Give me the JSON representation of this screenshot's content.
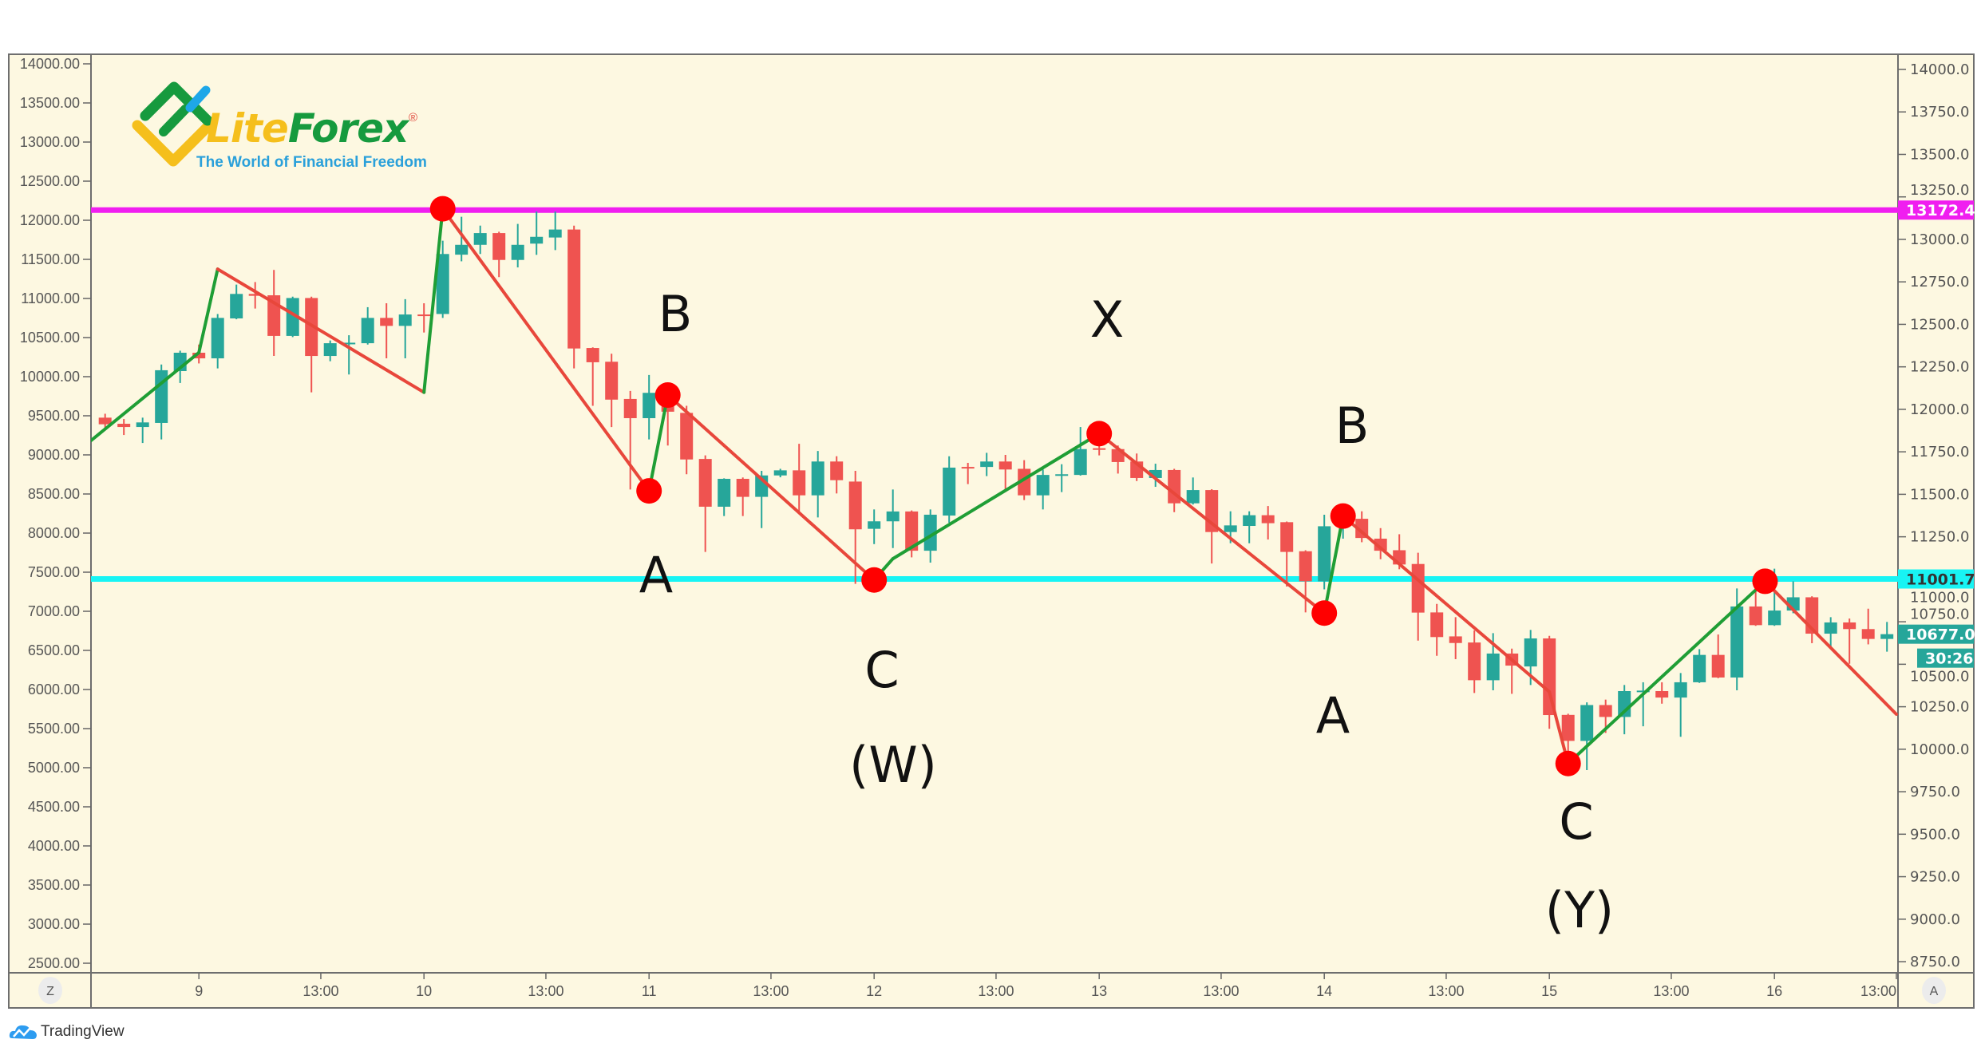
{
  "logo": {
    "brand_part1": "Lite",
    "brand_part2": "Forex",
    "registered": "®",
    "tagline": "The World of Financial Freedom"
  },
  "footer": {
    "brand": "TradingView"
  },
  "axis_buttons": {
    "left": "Z",
    "right": "A"
  },
  "colors": {
    "background": "#fdf8e1",
    "up": "#26a69a",
    "down": "#ef5350",
    "wave_up": "#1f9e35",
    "wave_down": "#e8473b",
    "pivot": "#ff0000",
    "resistance": "#f01ef0",
    "support": "#18f4f4"
  },
  "price_badges": {
    "resistance": "13172.4",
    "support": "11001.7",
    "last": "10677.0",
    "countdown": "30:26"
  },
  "chart_data": {
    "type": "candlestick",
    "left_axis_ticks": [
      "14000.00",
      "13500.00",
      "13000.00",
      "12500.00",
      "12000.00",
      "11500.00",
      "11000.00",
      "10500.00",
      "10000.00",
      "9500.00",
      "9000.00",
      "8500.00",
      "8000.00",
      "7500.00",
      "7000.00",
      "6500.00",
      "6000.00",
      "5500.00",
      "5000.00",
      "4500.00",
      "4000.00",
      "3500.00",
      "3000.00",
      "2500.00"
    ],
    "right_axis_ticks": [
      "14000.0",
      "13750.0",
      "13500.0",
      "13250.0",
      "13000.0",
      "12750.0",
      "12500.0",
      "12250.0",
      "12000.0",
      "11750.0",
      "11500.0",
      "11250.0",
      "11000.0",
      "10750.0",
      "10500.0",
      "10250.0",
      "10000.0",
      "9750.0",
      "9500.0",
      "9250.0",
      "9000.0",
      "8750.0"
    ],
    "ylim": [
      8750,
      14000
    ],
    "x_ticks": [
      {
        "label": "9",
        "t": "9 00:00"
      },
      {
        "label": "13:00",
        "t": "9 13:00"
      },
      {
        "label": "10",
        "t": "10 00:00"
      },
      {
        "label": "13:00",
        "t": "10 13:00"
      },
      {
        "label": "11",
        "t": "11 00:00"
      },
      {
        "label": "13:00",
        "t": "11 13:00"
      },
      {
        "label": "12",
        "t": "12 00:00"
      },
      {
        "label": "13:00",
        "t": "12 13:00"
      },
      {
        "label": "13",
        "t": "13 00:00"
      },
      {
        "label": "13:00",
        "t": "13 13:00"
      },
      {
        "label": "14",
        "t": "14 00:00"
      },
      {
        "label": "13:00",
        "t": "14 13:00"
      },
      {
        "label": "15",
        "t": "15 00:00"
      },
      {
        "label": "13:00",
        "t": "15 13:00"
      },
      {
        "label": "16",
        "t": "16 00:00"
      },
      {
        "label": "13:00",
        "t": "16 13:00"
      }
    ],
    "candle_interval_hours": 2,
    "first_candle": "8 14:00",
    "candles_ohlc": [
      [
        11951,
        11974,
        11888,
        11912
      ],
      [
        11915,
        11943,
        11849,
        11896
      ],
      [
        11896,
        11951,
        11802,
        11923
      ],
      [
        11920,
        12264,
        11823,
        12230
      ],
      [
        12225,
        12345,
        12155,
        12333
      ],
      [
        12333,
        12381,
        12270,
        12300
      ],
      [
        12300,
        12561,
        12241,
        12538
      ],
      [
        12535,
        12734,
        12530,
        12679
      ],
      [
        12679,
        12749,
        12593,
        12668
      ],
      [
        12671,
        12820,
        12314,
        12432
      ],
      [
        12432,
        12663,
        12425,
        12655
      ],
      [
        12655,
        12663,
        12100,
        12314
      ],
      [
        12314,
        12405,
        12283,
        12389
      ],
      [
        12389,
        12436,
        12205,
        12392
      ],
      [
        12389,
        12601,
        12381,
        12538
      ],
      [
        12538,
        12624,
        12300,
        12491
      ],
      [
        12491,
        12648,
        12300,
        12558
      ],
      [
        12558,
        12624,
        12452,
        12556
      ],
      [
        12561,
        12992,
        12538,
        12914
      ],
      [
        12910,
        13133,
        12871,
        12968
      ],
      [
        12968,
        13081,
        12914,
        13037
      ],
      [
        13037,
        13045,
        12778,
        12879
      ],
      [
        12879,
        13091,
        12835,
        12968
      ],
      [
        12975,
        13164,
        12909,
        13015
      ],
      [
        13011,
        13164,
        12937,
        13058
      ],
      [
        13058,
        13081,
        12241,
        12358
      ],
      [
        12361,
        12365,
        12021,
        12277
      ],
      [
        12280,
        12327,
        11896,
        12057
      ],
      [
        12061,
        12108,
        11528,
        11948
      ],
      [
        11948,
        12202,
        11823,
        12097
      ],
      [
        12029,
        12040,
        11787,
        11986
      ],
      [
        11979,
        12021,
        11618,
        11705
      ],
      [
        11708,
        11729,
        11161,
        11427
      ],
      [
        11427,
        11594,
        11372,
        11591
      ],
      [
        11591,
        11599,
        11372,
        11485
      ],
      [
        11485,
        11638,
        11301,
        11611
      ],
      [
        11611,
        11650,
        11600,
        11641
      ],
      [
        11641,
        11797,
        11388,
        11494
      ],
      [
        11494,
        11755,
        11364,
        11693
      ],
      [
        11693,
        11724,
        11505,
        11583
      ],
      [
        11575,
        11638,
        10973,
        11294
      ],
      [
        11297,
        11411,
        11207,
        11341
      ],
      [
        11341,
        11528,
        11184,
        11399
      ],
      [
        11399,
        11405,
        11129,
        11168
      ],
      [
        11168,
        11411,
        11098,
        11380
      ],
      [
        11375,
        11724,
        11333,
        11657
      ],
      [
        11661,
        11685,
        11560,
        11658
      ],
      [
        11661,
        11744,
        11607,
        11693
      ],
      [
        11693,
        11732,
        11513,
        11646
      ],
      [
        11650,
        11701,
        11466,
        11494
      ],
      [
        11494,
        11646,
        11411,
        11614
      ],
      [
        11614,
        11677,
        11513,
        11618
      ],
      [
        11614,
        11896,
        11610,
        11766
      ],
      [
        11771,
        11794,
        11729,
        11763
      ],
      [
        11766,
        11787,
        11622,
        11690
      ],
      [
        11693,
        11740,
        11578,
        11596
      ],
      [
        11596,
        11680,
        11544,
        11643
      ],
      [
        11643,
        11650,
        11395,
        11447
      ],
      [
        11447,
        11599,
        11440,
        11525
      ],
      [
        11525,
        11530,
        11093,
        11278
      ],
      [
        11278,
        11400,
        11212,
        11317
      ],
      [
        11314,
        11400,
        11212,
        11377
      ],
      [
        11377,
        11431,
        11234,
        11330
      ],
      [
        11336,
        11340,
        10957,
        11161
      ],
      [
        11165,
        11171,
        10805,
        10988
      ],
      [
        10988,
        11380,
        10941,
        11312
      ],
      [
        11312,
        11419,
        11239,
        11350
      ],
      [
        11356,
        11400,
        11218,
        11243
      ],
      [
        11239,
        11301,
        11118,
        11168
      ],
      [
        11171,
        11265,
        11059,
        11087
      ],
      [
        11090,
        11156,
        10639,
        10804
      ],
      [
        10805,
        10855,
        10550,
        10660
      ],
      [
        10664,
        10777,
        10530,
        10625
      ],
      [
        10628,
        10699,
        10331,
        10406
      ],
      [
        10406,
        10683,
        10347,
        10563
      ],
      [
        10563,
        10592,
        10326,
        10492
      ],
      [
        10487,
        10702,
        10378,
        10652
      ],
      [
        10652,
        10667,
        10120,
        10201
      ],
      [
        10202,
        10209,
        9908,
        10049
      ],
      [
        10049,
        10276,
        9877,
        10260
      ],
      [
        10260,
        10292,
        10096,
        10190
      ],
      [
        10190,
        10378,
        10088,
        10342
      ],
      [
        10342,
        10394,
        10135,
        10345
      ],
      [
        10342,
        10394,
        10268,
        10304
      ],
      [
        10304,
        10448,
        10073,
        10394
      ],
      [
        10394,
        10589,
        10390,
        10555
      ],
      [
        10555,
        10675,
        10418,
        10422
      ],
      [
        10422,
        10946,
        10347,
        10840
      ],
      [
        10840,
        10952,
        10726,
        10730
      ],
      [
        10730,
        11062,
        10726,
        10816
      ],
      [
        10816,
        10988,
        10800,
        10894
      ],
      [
        10894,
        10900,
        10624,
        10680
      ],
      [
        10680,
        10777,
        10605,
        10746
      ],
      [
        10746,
        10769,
        10503,
        10707
      ],
      [
        10707,
        10827,
        10617,
        10649
      ],
      [
        10649,
        10749,
        10574,
        10677
      ]
    ],
    "horizontal_lines": [
      {
        "price": 13172.4,
        "color": "#f01ef0"
      },
      {
        "price": 11001.7,
        "color": "#18f4f4"
      }
    ],
    "wave_path": [
      {
        "t": "8 12:00",
        "price": 11794,
        "pivot": false
      },
      {
        "t": "9 00:00",
        "price": 12334,
        "pivot": false
      },
      {
        "t": "9 02:00",
        "price": 12825,
        "pivot": false
      },
      {
        "t": "10 00:00",
        "price": 12100,
        "pivot": false
      },
      {
        "t": "10 02:00",
        "price": 13180,
        "pivot": true
      },
      {
        "t": "11 00:00",
        "price": 11520,
        "pivot": true
      },
      {
        "t": "11 02:00",
        "price": 12084,
        "pivot": true
      },
      {
        "t": "12 00:00",
        "price": 10996,
        "pivot": true
      },
      {
        "t": "12 02:00",
        "price": 11121,
        "pivot": false
      },
      {
        "t": "13 00:00",
        "price": 11857,
        "pivot": true
      },
      {
        "t": "14 00:00",
        "price": 10801,
        "pivot": true
      },
      {
        "t": "14 02:00",
        "price": 11372,
        "pivot": true
      },
      {
        "t": "15 00:00",
        "price": 10338,
        "pivot": false
      },
      {
        "t": "15 02:00",
        "price": 9916,
        "pivot": true
      },
      {
        "t": "15 23:00",
        "price": 10988,
        "pivot": true
      },
      {
        "t": "16 13:00",
        "price": 10206,
        "pivot": false
      }
    ],
    "wave_labels": [
      "B",
      "A",
      "C",
      "(W)",
      "X",
      "B",
      "A",
      "C",
      "(Y)"
    ]
  }
}
